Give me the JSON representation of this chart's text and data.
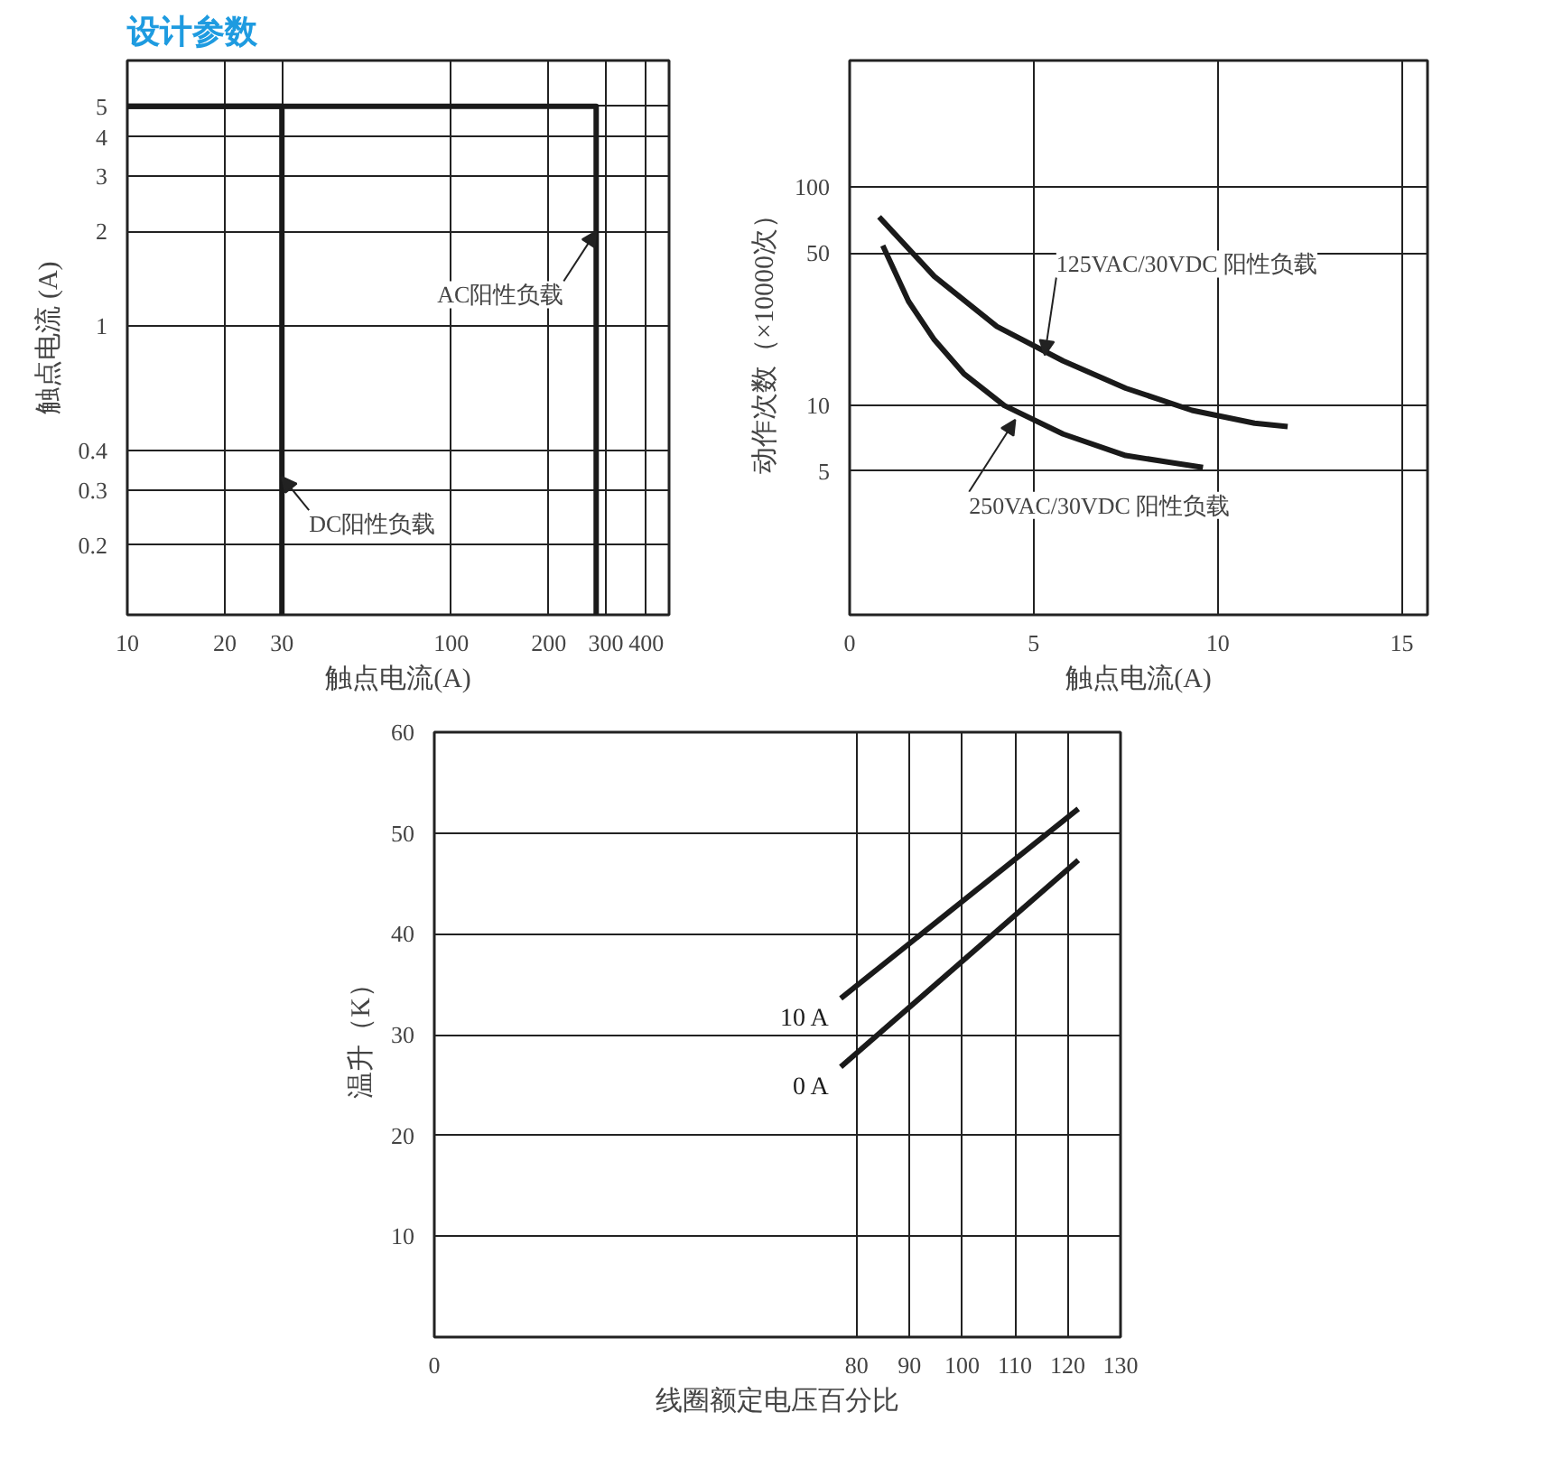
{
  "chart_data": [
    {
      "type": "line",
      "title": "设计参数",
      "xlabel": "触点电流(A)",
      "ylabel": "触点电流 (A)",
      "log": "xy",
      "grid": true,
      "xlim": [
        10,
        470
      ],
      "xticks": [
        10,
        20,
        30,
        100,
        200,
        300,
        400
      ],
      "ylim": [
        0.12,
        7
      ],
      "yticks": [
        0.2,
        0.3,
        0.4,
        1,
        2,
        3,
        4,
        5
      ],
      "series": [
        {
          "color": "#1a1a1a",
          "x": [
            30,
            30,
            10
          ],
          "values": [
            0.12,
            5,
            5
          ]
        },
        {
          "color": "#1a1a1a",
          "x": [
            280,
            280,
            10
          ],
          "values": [
            0.12,
            5,
            5
          ]
        }
      ],
      "annotations": [
        {
          "text": "AC阳性负载",
          "x": 280,
          "y": 2
        },
        {
          "text": "DC阳性负载",
          "x": 30,
          "y": 0.33
        }
      ]
    },
    {
      "type": "line",
      "xlabel": "触点电流(A)",
      "ylabel": "动作次数（×10000次）",
      "log": "y",
      "grid": true,
      "xlim": [
        0,
        15.7
      ],
      "xticks": [
        0,
        5,
        10,
        15
      ],
      "ylim": [
        1.1,
        380
      ],
      "yticks": [
        5,
        10,
        50,
        100
      ],
      "series": [
        {
          "color": "#1a1a1a",
          "x": [
            0.8,
            2.3,
            4,
            5.8,
            7.5,
            9.3,
            11,
            11.9
          ],
          "values": [
            73,
            39,
            23,
            16,
            12,
            9.5,
            8.3,
            8
          ]
        },
        {
          "color": "#1a1a1a",
          "x": [
            0.9,
            1.6,
            2.3,
            3.1,
            4.2,
            5.8,
            7.5,
            9.6
          ],
          "values": [
            54,
            30,
            20,
            14,
            10,
            7.4,
            5.9,
            5.2
          ]
        }
      ],
      "annotations": [
        {
          "text": "125VAC/30VDC 阳性负载",
          "x": 5.3,
          "y": 17
        },
        {
          "text": "250VAC/30VDC 阳性负载",
          "x": 4.5,
          "y": 8.6
        }
      ]
    },
    {
      "type": "line",
      "xlabel": "线圈额定电压百分比",
      "ylabel": "温升（K）",
      "grid": true,
      "xlim": [
        0,
        130
      ],
      "xticks": [
        0,
        80,
        90,
        100,
        110,
        120,
        130
      ],
      "ylim": [
        0,
        60
      ],
      "yticks": [
        10,
        20,
        30,
        40,
        50,
        60
      ],
      "series": [
        {
          "name": "10 A",
          "color": "#1a1a1a",
          "x": [
            77,
            122
          ],
          "values": [
            33.6,
            52.4
          ]
        },
        {
          "name": "0 A",
          "color": "#1a1a1a",
          "x": [
            77,
            122
          ],
          "values": [
            26.8,
            47.3
          ]
        }
      ]
    }
  ]
}
